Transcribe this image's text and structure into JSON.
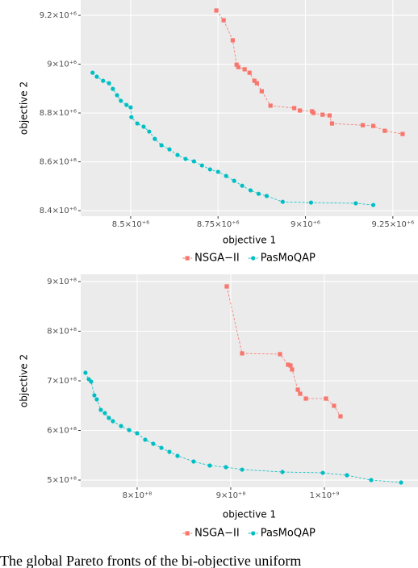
{
  "chart_data": [
    {
      "type": "line",
      "xlabel": "objective 1",
      "ylabel": "objective 2",
      "xlim": [
        8357000,
        9322000
      ],
      "ylim": [
        8377000,
        9263000
      ],
      "xticks": [
        {
          "value": 8500000,
          "label": "8.5×10⁺⁶"
        },
        {
          "value": 8750000,
          "label": "8.75×10⁺⁶"
        },
        {
          "value": 9000000,
          "label": "9×10⁺⁶"
        },
        {
          "value": 9250000,
          "label": "9.25×10⁺⁶"
        }
      ],
      "yticks": [
        {
          "value": 8400000,
          "label": "8.4×10⁺⁶"
        },
        {
          "value": 8600000,
          "label": "8.6×10⁺⁶"
        },
        {
          "value": 8800000,
          "label": "8.8×10⁺⁶"
        },
        {
          "value": 9000000,
          "label": "9×10⁺⁶"
        },
        {
          "value": 9200000,
          "label": "9.2×10⁺⁶"
        }
      ],
      "grid": true,
      "legend": "bottom",
      "series": [
        {
          "name": "NSGA−II",
          "color": "#F8766D",
          "marker": "square",
          "x": [
            8745000,
            8766000,
            8792000,
            8803000,
            8808000,
            8826000,
            8840000,
            8854000,
            8861000,
            8875000,
            8900000,
            8968000,
            8984000,
            9019000,
            9023000,
            9049000,
            9069000,
            9076000,
            9164000,
            9194000,
            9227000,
            9278000
          ],
          "values": [
            9220000,
            9180000,
            9098000,
            8998000,
            8988000,
            8979000,
            8965000,
            8932000,
            8922000,
            8889000,
            8830000,
            8820000,
            8810000,
            8807000,
            8800000,
            8793000,
            8790000,
            8757000,
            8750000,
            8747000,
            8727000,
            8714000
          ]
        },
        {
          "name": "PasMoQAP",
          "color": "#00BFC4",
          "marker": "circle",
          "x": [
            8391000,
            8403000,
            8421000,
            8438000,
            8449000,
            8461000,
            8472000,
            8488000,
            8500000,
            8502000,
            8519000,
            8537000,
            8553000,
            8569000,
            8588000,
            8611000,
            8634000,
            8657000,
            8681000,
            8704000,
            8727000,
            8750000,
            8773000,
            8796000,
            8819000,
            8843000,
            8866000,
            8889000,
            8935000,
            9016000,
            9144000,
            9194000
          ],
          "values": [
            8965000,
            8949000,
            8932000,
            8922000,
            8899000,
            8873000,
            8850000,
            8833000,
            8823000,
            8783000,
            8757000,
            8744000,
            8724000,
            8694000,
            8668000,
            8651000,
            8628000,
            8612000,
            8602000,
            8585000,
            8569000,
            8559000,
            8542000,
            8522000,
            8502000,
            8483000,
            8469000,
            8460000,
            8436000,
            8433000,
            8430000,
            8423000
          ]
        }
      ]
    },
    {
      "type": "line",
      "xlabel": "objective 1",
      "ylabel": "objective 2",
      "xlim": [
        739700000,
        1100000000
      ],
      "ylim": [
        485400000,
        914600000
      ],
      "xticks": [
        {
          "value": 800000000,
          "label": "8×10⁺⁸"
        },
        {
          "value": 900000000,
          "label": "9×10⁺⁸"
        },
        {
          "value": 1000000000,
          "label": "1×10⁺⁹"
        }
      ],
      "yticks": [
        {
          "value": 500000000,
          "label": "5×10⁺⁸"
        },
        {
          "value": 600000000,
          "label": "6×10⁺⁸"
        },
        {
          "value": 700000000,
          "label": "7×10⁺⁸"
        },
        {
          "value": 800000000,
          "label": "8×10⁺⁸"
        },
        {
          "value": 900000000,
          "label": "9×10⁺⁸"
        }
      ],
      "grid": true,
      "legend": "bottom",
      "series": [
        {
          "name": "NSGA−II",
          "color": "#F8766D",
          "marker": "square",
          "x": [
            895700000,
            912100000,
            952600000,
            961200000,
            963800000,
            965500000,
            971600000,
            974100000,
            980200000,
            1001700000,
            1010300000,
            1017200000
          ],
          "values": [
            890200000,
            755300000,
            753700000,
            732500000,
            730900000,
            722800000,
            682100000,
            674000000,
            664200000,
            664200000,
            649600000,
            628500000
          ]
        },
        {
          "name": "PasMoQAP",
          "color": "#00BFC4",
          "marker": "circle",
          "x": [
            744800000,
            748300000,
            750900000,
            754300000,
            756900000,
            761200000,
            765500000,
            769800000,
            774100000,
            782800000,
            791400000,
            800000000,
            808600000,
            817200000,
            825900000,
            834500000,
            843100000,
            860300000,
            877600000,
            894800000,
            912100000,
            955200000,
            998300000,
            1024100000,
            1050000000,
            1081900000
          ],
          "values": [
            716300000,
            703300000,
            698400000,
            670700000,
            662600000,
            641500000,
            635000000,
            625200000,
            618700000,
            608900000,
            600800000,
            594300000,
            581300000,
            573200000,
            565000000,
            556900000,
            548800000,
            537400000,
            529300000,
            526000000,
            521100000,
            516300000,
            514600000,
            509800000,
            500000000,
            495100000
          ]
        }
      ]
    }
  ],
  "caption": "The global Pareto fronts of the bi-objective uniform"
}
